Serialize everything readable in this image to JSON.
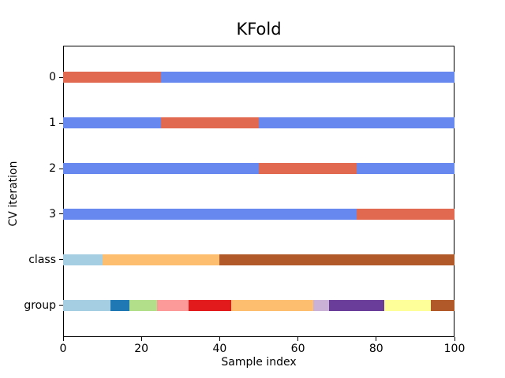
{
  "figure": {
    "background_color": "#ffffff",
    "axes_edge_color": "#000000"
  },
  "chart_data": {
    "type": "cv-indices-segmented-horizontal-bars",
    "title": "KFold",
    "xlabel": "Sample index",
    "ylabel": "CV iteration",
    "xlim": [
      0,
      100
    ],
    "x_ticks": [
      0,
      20,
      40,
      60,
      80,
      100
    ],
    "y_tick_labels": [
      "0",
      "1",
      "2",
      "3",
      "class",
      "group"
    ],
    "n_samples": 100,
    "n_splits": 4,
    "grid": false,
    "legend": null,
    "series_colors": {
      "train": "#6788ee",
      "test": "#e1694f"
    },
    "rows": [
      {
        "label": "0",
        "kind": "cv-fold",
        "segments": [
          {
            "role": "test",
            "start": 0,
            "end": 25,
            "color": "#e1694f"
          },
          {
            "role": "train",
            "start": 25,
            "end": 100,
            "color": "#6788ee"
          }
        ]
      },
      {
        "label": "1",
        "kind": "cv-fold",
        "segments": [
          {
            "role": "train",
            "start": 0,
            "end": 25,
            "color": "#6788ee"
          },
          {
            "role": "test",
            "start": 25,
            "end": 50,
            "color": "#e1694f"
          },
          {
            "role": "train",
            "start": 50,
            "end": 100,
            "color": "#6788ee"
          }
        ]
      },
      {
        "label": "2",
        "kind": "cv-fold",
        "segments": [
          {
            "role": "train",
            "start": 0,
            "end": 50,
            "color": "#6788ee"
          },
          {
            "role": "test",
            "start": 50,
            "end": 75,
            "color": "#e1694f"
          },
          {
            "role": "train",
            "start": 75,
            "end": 100,
            "color": "#6788ee"
          }
        ]
      },
      {
        "label": "3",
        "kind": "cv-fold",
        "segments": [
          {
            "role": "train",
            "start": 0,
            "end": 75,
            "color": "#6788ee"
          },
          {
            "role": "test",
            "start": 75,
            "end": 100,
            "color": "#e1694f"
          }
        ]
      },
      {
        "label": "class",
        "kind": "data-class",
        "segments": [
          {
            "role": "class-0",
            "start": 0,
            "end": 10,
            "color": "#a6cee3"
          },
          {
            "role": "class-1",
            "start": 10,
            "end": 40,
            "color": "#fdbf6f"
          },
          {
            "role": "class-2",
            "start": 40,
            "end": 100,
            "color": "#b15928"
          }
        ]
      },
      {
        "label": "group",
        "kind": "data-group",
        "segments": [
          {
            "role": "group-0",
            "start": 0,
            "end": 12,
            "color": "#a6cee3"
          },
          {
            "role": "group-1",
            "start": 12,
            "end": 17,
            "color": "#1f78b4"
          },
          {
            "role": "group-2",
            "start": 17,
            "end": 24,
            "color": "#b2df8a"
          },
          {
            "role": "group-3",
            "start": 24,
            "end": 32,
            "color": "#fb9a99"
          },
          {
            "role": "group-4",
            "start": 32,
            "end": 43,
            "color": "#e31a1c"
          },
          {
            "role": "group-5",
            "start": 43,
            "end": 64,
            "color": "#fdbf6f"
          },
          {
            "role": "group-6",
            "start": 64,
            "end": 68,
            "color": "#cab2d6"
          },
          {
            "role": "group-7",
            "start": 68,
            "end": 82,
            "color": "#6a3d9a"
          },
          {
            "role": "group-8",
            "start": 82,
            "end": 94,
            "color": "#ffff99"
          },
          {
            "role": "group-9",
            "start": 94,
            "end": 100,
            "color": "#b15928"
          }
        ]
      }
    ]
  }
}
